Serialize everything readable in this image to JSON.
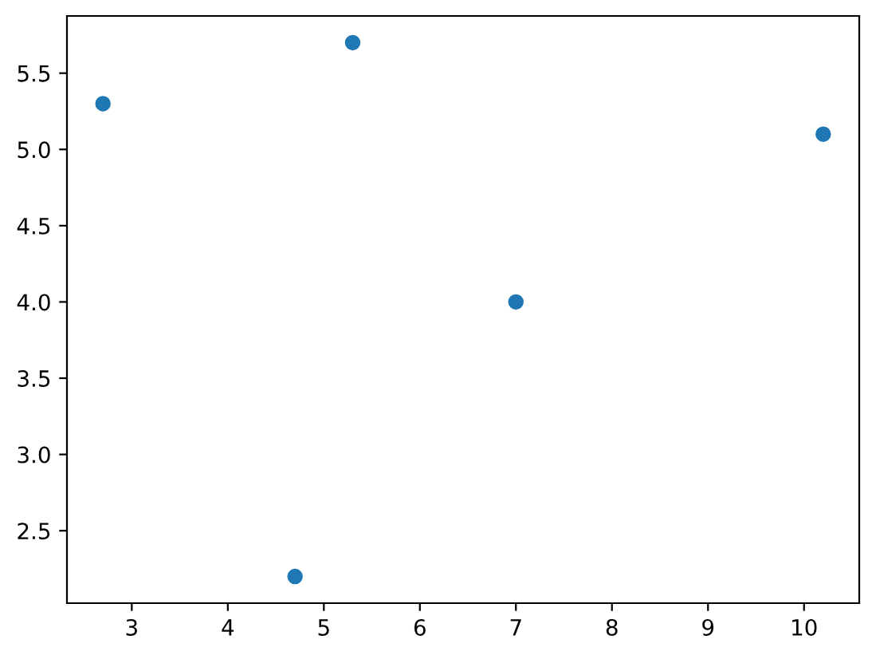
{
  "chart_data": {
    "type": "scatter",
    "x": [
      2.7,
      4.7,
      5.3,
      7,
      10.2
    ],
    "series": [
      {
        "color": "#1f77b4",
        "values": [
          5.3,
          2.2,
          5.7,
          4.0,
          5.1
        ]
      }
    ],
    "marker": "circle",
    "xlim": [
      2.325,
      10.575
    ],
    "ylim": [
      2.025,
      5.875
    ],
    "xticks": [
      3,
      4,
      5,
      6,
      7,
      8,
      9,
      10
    ],
    "yticks": [
      {
        "value": 2.5,
        "label": "2.5"
      },
      {
        "value": 3.0,
        "label": "3.0"
      },
      {
        "value": 3.5,
        "label": "3.5"
      },
      {
        "value": 4.0,
        "label": "4.0"
      },
      {
        "value": 4.5,
        "label": "4.5"
      },
      {
        "value": 5.0,
        "label": "5.0"
      },
      {
        "value": 5.5,
        "label": "5.5"
      }
    ],
    "grid": false
  }
}
